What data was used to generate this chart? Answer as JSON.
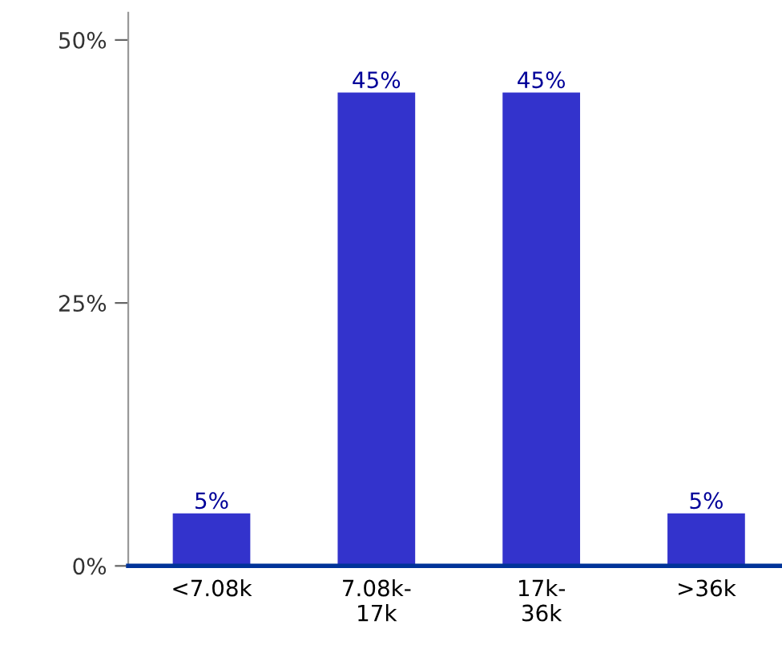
{
  "chart_data": {
    "type": "bar",
    "categories": [
      "<7.08k",
      "7.08k-\n17k",
      "17k-\n36k",
      ">36k"
    ],
    "values": [
      5,
      45,
      45,
      5
    ],
    "value_labels": [
      "5%",
      "45%",
      "45%",
      "5%"
    ],
    "color": "#3333cc",
    "ylim": [
      0,
      52.6
    ],
    "yticks": [
      {
        "value": 0,
        "label": "0%"
      },
      {
        "value": 25,
        "label": "25%"
      },
      {
        "value": 50,
        "label": "50%"
      }
    ],
    "grid": false,
    "legend": false
  }
}
